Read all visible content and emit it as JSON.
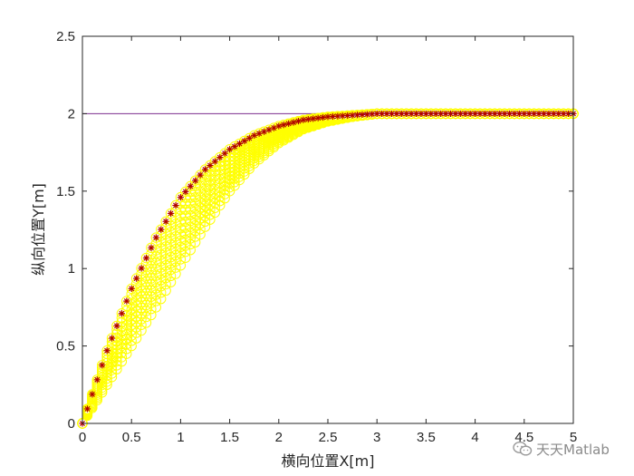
{
  "chart_data": {
    "type": "scatter",
    "title": "",
    "xlabel": "横向位置X[m]",
    "ylabel": "纵向位置Y[m]",
    "xlim": [
      0,
      5
    ],
    "ylim": [
      0,
      2.5
    ],
    "xticks": [
      0,
      0.5,
      1,
      1.5,
      2,
      2.5,
      3,
      3.5,
      4,
      4.5,
      5
    ],
    "yticks": [
      0,
      0.5,
      1,
      1.5,
      2,
      2.5
    ],
    "xtick_labels": [
      "0",
      "0.5",
      "1",
      "1.5",
      "2",
      "2.5",
      "3",
      "3.5",
      "4",
      "4.5",
      "5"
    ],
    "ytick_labels": [
      "0",
      "0.5",
      "1",
      "1.5",
      "2",
      "2.5"
    ],
    "grid": false,
    "reference_line": {
      "y": 2,
      "x_range": [
        0,
        5
      ],
      "color": "#7e2f8e"
    },
    "series": [
      {
        "marker": "circle",
        "color": "#ffff00",
        "description_curves": [
          {
            "x": [
              0,
              0.25,
              0.5,
              0.75,
              1.0,
              1.25,
              1.5,
              1.75,
              2.0,
              2.25,
              2.5,
              2.75,
              3.0,
              3.25,
              3.5,
              3.75,
              4.0,
              4.25,
              4.5,
              4.75,
              5.0
            ],
            "y": [
              0,
              0.47,
              0.87,
              1.2,
              1.46,
              1.64,
              1.77,
              1.86,
              1.92,
              1.96,
              1.98,
              1.99,
              2.0,
              2.0,
              2.0,
              2.0,
              2.0,
              2.0,
              2.0,
              2.0,
              2.0
            ]
          },
          {
            "x": [
              0,
              0.25,
              0.5,
              0.75,
              1.0,
              1.25,
              1.5,
              1.75,
              2.0,
              2.25,
              2.5,
              2.75,
              3.0,
              3.25,
              3.5,
              3.75,
              4.0,
              4.25,
              4.5,
              4.75,
              5.0
            ],
            "y": [
              0,
              0.25,
              0.5,
              0.75,
              1.02,
              1.27,
              1.5,
              1.68,
              1.81,
              1.9,
              1.95,
              1.98,
              2.0,
              2.0,
              2.0,
              2.0,
              2.0,
              2.0,
              2.0,
              2.0,
              2.0
            ]
          }
        ]
      },
      {
        "marker": "asterisk",
        "color": "#b00000",
        "x": [
          0,
          0.25,
          0.5,
          0.75,
          1.0,
          1.25,
          1.5,
          1.75,
          2.0,
          2.25,
          2.5,
          2.75,
          3.0,
          3.25,
          3.5,
          3.75,
          4.0,
          4.25,
          4.5,
          4.75,
          5.0
        ],
        "y": [
          0,
          0.47,
          0.87,
          1.2,
          1.46,
          1.64,
          1.77,
          1.86,
          1.92,
          1.96,
          1.98,
          1.99,
          2.0,
          2.0,
          2.0,
          2.0,
          2.0,
          2.0,
          2.0,
          2.0,
          2.0
        ]
      }
    ]
  },
  "watermark": {
    "text": "天天Matlab",
    "icon": "wechat-icon"
  }
}
